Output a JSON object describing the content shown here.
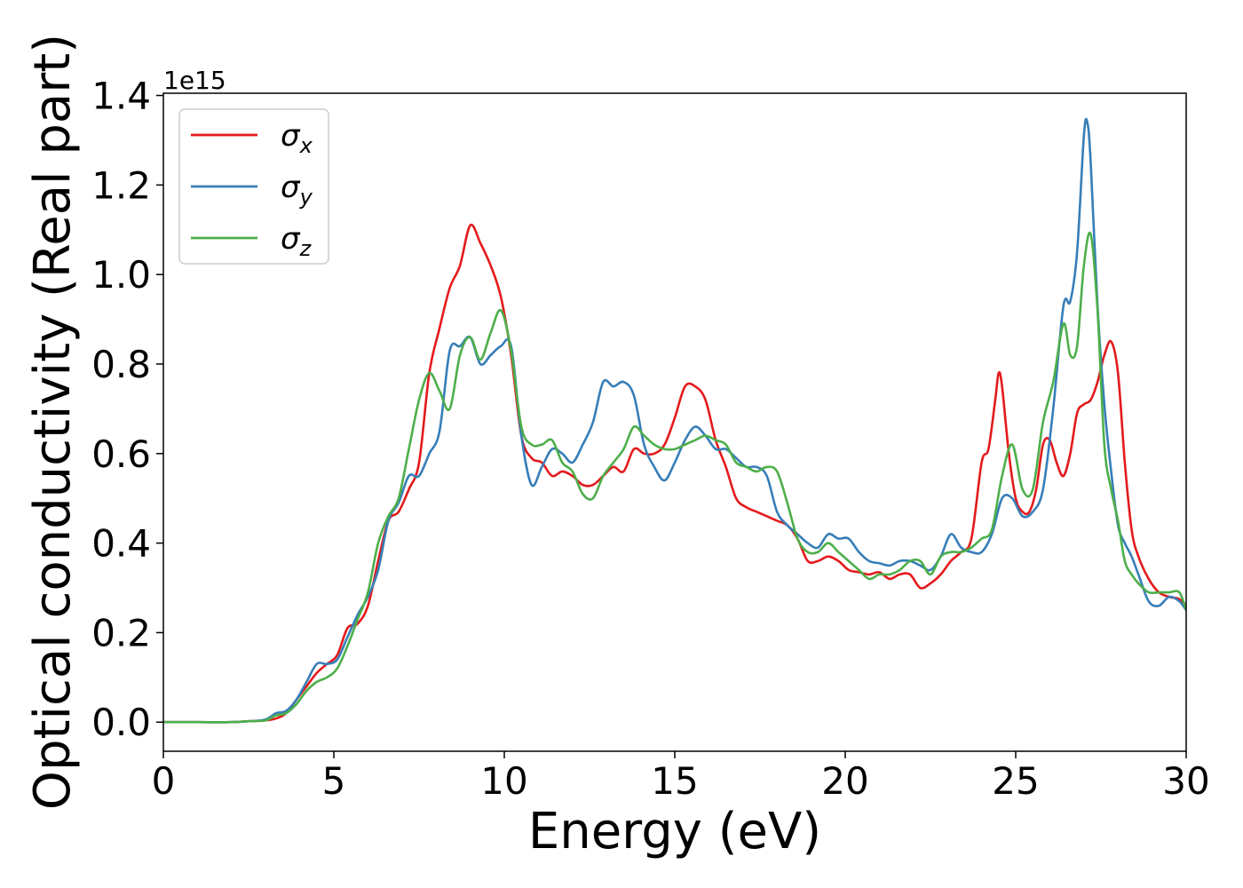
{
  "chart_data": {
    "type": "line",
    "xlabel": "Energy (eV)",
    "ylabel": "Optical conductivity (Real part)",
    "y_offset_text": "1e15",
    "xlim": [
      0,
      30
    ],
    "ylim": [
      -0.065,
      1.405
    ],
    "y_scale_factor": 1000000000000000.0,
    "xticks": [
      0,
      5,
      10,
      15,
      20,
      25,
      30
    ],
    "xtick_labels": [
      "0",
      "5",
      "10",
      "15",
      "20",
      "25",
      "30"
    ],
    "yticks": [
      0.0,
      0.2,
      0.4,
      0.6,
      0.8,
      1.0,
      1.2,
      1.4
    ],
    "ytick_labels": [
      "0.0",
      "0.2",
      "0.4",
      "0.6",
      "0.8",
      "1.0",
      "1.2",
      "1.4"
    ],
    "grid": false,
    "legend_position": "top-left",
    "series": [
      {
        "name": "σx",
        "base": "σ",
        "sub": "x",
        "color": "#e41a1c",
        "x": [
          0,
          1,
          2,
          2.5,
          3,
          3.3,
          3.6,
          3.9,
          4.2,
          4.5,
          4.8,
          5.1,
          5.4,
          5.7,
          6,
          6.3,
          6.6,
          6.9,
          7.2,
          7.5,
          7.8,
          8.1,
          8.4,
          8.7,
          9,
          9.3,
          9.6,
          9.9,
          10.2,
          10.5,
          10.8,
          11.1,
          11.4,
          11.7,
          12,
          12.3,
          12.6,
          12.9,
          13.2,
          13.5,
          13.8,
          14.1,
          14.4,
          14.7,
          15,
          15.3,
          15.6,
          15.9,
          16.2,
          16.5,
          16.8,
          17.1,
          17.4,
          17.7,
          18,
          18.3,
          18.6,
          18.9,
          19.2,
          19.5,
          19.8,
          20.1,
          20.4,
          20.7,
          21,
          21.3,
          21.6,
          21.9,
          22.2,
          22.5,
          22.8,
          23.1,
          23.4,
          23.7,
          24,
          24.2,
          24.4,
          24.5,
          24.6,
          24.8,
          25,
          25.2,
          25.4,
          25.6,
          25.8,
          26,
          26.2,
          26.4,
          26.6,
          26.8,
          27,
          27.2,
          27.4,
          27.6,
          27.8,
          28,
          28.2,
          28.4,
          28.6,
          28.9,
          29.2,
          29.5,
          29.8,
          30
        ],
        "y": [
          0,
          0,
          0,
          0.002,
          0.004,
          0.008,
          0.02,
          0.05,
          0.08,
          0.11,
          0.13,
          0.15,
          0.21,
          0.22,
          0.26,
          0.36,
          0.45,
          0.47,
          0.52,
          0.58,
          0.78,
          0.88,
          0.97,
          1.02,
          1.11,
          1.07,
          1.02,
          0.95,
          0.82,
          0.64,
          0.59,
          0.58,
          0.55,
          0.56,
          0.55,
          0.53,
          0.53,
          0.55,
          0.57,
          0.56,
          0.61,
          0.6,
          0.6,
          0.62,
          0.68,
          0.75,
          0.75,
          0.72,
          0.63,
          0.57,
          0.5,
          0.48,
          0.47,
          0.46,
          0.45,
          0.44,
          0.41,
          0.36,
          0.36,
          0.37,
          0.36,
          0.34,
          0.335,
          0.33,
          0.335,
          0.32,
          0.33,
          0.33,
          0.3,
          0.31,
          0.33,
          0.36,
          0.38,
          0.41,
          0.58,
          0.61,
          0.72,
          0.78,
          0.75,
          0.6,
          0.5,
          0.47,
          0.47,
          0.52,
          0.62,
          0.63,
          0.58,
          0.55,
          0.6,
          0.69,
          0.71,
          0.72,
          0.76,
          0.82,
          0.85,
          0.78,
          0.58,
          0.43,
          0.37,
          0.32,
          0.29,
          0.28,
          0.275,
          0.26
        ]
      },
      {
        "name": "σy",
        "base": "σ",
        "sub": "y",
        "color": "#377eb8",
        "x": [
          0,
          1,
          2,
          2.5,
          3,
          3.3,
          3.6,
          3.9,
          4.2,
          4.5,
          4.8,
          5.1,
          5.4,
          5.7,
          6,
          6.3,
          6.6,
          6.9,
          7.2,
          7.5,
          7.8,
          8.1,
          8.4,
          8.7,
          9,
          9.3,
          9.6,
          9.9,
          10.2,
          10.5,
          10.8,
          11.1,
          11.4,
          11.7,
          12,
          12.3,
          12.6,
          12.9,
          13.2,
          13.5,
          13.8,
          14.1,
          14.4,
          14.7,
          15,
          15.3,
          15.6,
          15.9,
          16.2,
          16.5,
          16.8,
          17.1,
          17.4,
          17.7,
          18,
          18.3,
          18.6,
          18.9,
          19.2,
          19.5,
          19.8,
          20.1,
          20.4,
          20.7,
          21,
          21.3,
          21.6,
          21.9,
          22.2,
          22.5,
          22.8,
          23.1,
          23.4,
          23.7,
          24,
          24.3,
          24.6,
          24.9,
          25.2,
          25.5,
          25.8,
          26.1,
          26.4,
          26.6,
          26.8,
          27,
          27.1,
          27.2,
          27.4,
          27.6,
          27.8,
          28,
          28.2,
          28.4,
          28.6,
          28.9,
          29.2,
          29.5,
          29.8,
          30
        ],
        "y": [
          0,
          0,
          0,
          0.002,
          0.006,
          0.02,
          0.025,
          0.05,
          0.09,
          0.13,
          0.13,
          0.14,
          0.19,
          0.24,
          0.28,
          0.34,
          0.45,
          0.49,
          0.55,
          0.55,
          0.6,
          0.65,
          0.83,
          0.84,
          0.86,
          0.8,
          0.82,
          0.84,
          0.84,
          0.64,
          0.53,
          0.57,
          0.61,
          0.6,
          0.58,
          0.62,
          0.67,
          0.76,
          0.75,
          0.76,
          0.73,
          0.62,
          0.57,
          0.54,
          0.58,
          0.63,
          0.66,
          0.64,
          0.61,
          0.61,
          0.59,
          0.57,
          0.57,
          0.55,
          0.47,
          0.44,
          0.42,
          0.4,
          0.39,
          0.42,
          0.41,
          0.41,
          0.38,
          0.36,
          0.355,
          0.35,
          0.36,
          0.36,
          0.35,
          0.34,
          0.37,
          0.42,
          0.39,
          0.38,
          0.38,
          0.42,
          0.5,
          0.5,
          0.46,
          0.47,
          0.52,
          0.7,
          0.93,
          0.94,
          1.05,
          1.31,
          1.34,
          1.25,
          0.93,
          0.71,
          0.56,
          0.44,
          0.4,
          0.37,
          0.33,
          0.27,
          0.26,
          0.28,
          0.27,
          0.25
        ]
      },
      {
        "name": "σz",
        "base": "σ",
        "sub": "z",
        "color": "#4daf4a",
        "x": [
          0,
          1,
          2,
          2.5,
          3,
          3.3,
          3.6,
          3.9,
          4.2,
          4.5,
          4.8,
          5.1,
          5.4,
          5.7,
          6,
          6.3,
          6.6,
          6.9,
          7.2,
          7.5,
          7.8,
          8.1,
          8.4,
          8.7,
          9,
          9.3,
          9.6,
          9.9,
          10.2,
          10.5,
          10.8,
          11.1,
          11.4,
          11.7,
          12,
          12.3,
          12.6,
          12.9,
          13.2,
          13.5,
          13.8,
          14.1,
          14.4,
          14.7,
          15,
          15.3,
          15.6,
          15.9,
          16.2,
          16.5,
          16.8,
          17.1,
          17.4,
          17.7,
          18,
          18.3,
          18.6,
          18.9,
          19.2,
          19.5,
          19.8,
          20.1,
          20.4,
          20.7,
          21,
          21.3,
          21.6,
          21.9,
          22.2,
          22.5,
          22.8,
          23.1,
          23.4,
          23.7,
          24,
          24.3,
          24.6,
          24.9,
          25.2,
          25.5,
          25.8,
          26.1,
          26.4,
          26.6,
          26.8,
          27,
          27.2,
          27.4,
          27.6,
          27.8,
          28,
          28.2,
          28.4,
          28.6,
          28.9,
          29.2,
          29.5,
          29.8,
          30
        ],
        "y": [
          0,
          0,
          0,
          0.002,
          0.004,
          0.015,
          0.02,
          0.04,
          0.07,
          0.09,
          0.1,
          0.12,
          0.17,
          0.23,
          0.29,
          0.4,
          0.46,
          0.5,
          0.61,
          0.72,
          0.78,
          0.74,
          0.7,
          0.82,
          0.86,
          0.81,
          0.87,
          0.92,
          0.83,
          0.66,
          0.62,
          0.62,
          0.63,
          0.58,
          0.56,
          0.51,
          0.5,
          0.55,
          0.58,
          0.61,
          0.66,
          0.64,
          0.62,
          0.61,
          0.61,
          0.62,
          0.63,
          0.64,
          0.63,
          0.62,
          0.58,
          0.57,
          0.56,
          0.57,
          0.56,
          0.49,
          0.41,
          0.38,
          0.38,
          0.4,
          0.38,
          0.36,
          0.34,
          0.32,
          0.33,
          0.33,
          0.34,
          0.36,
          0.36,
          0.33,
          0.37,
          0.38,
          0.38,
          0.39,
          0.41,
          0.43,
          0.55,
          0.62,
          0.52,
          0.52,
          0.67,
          0.76,
          0.89,
          0.82,
          0.84,
          1.02,
          1.09,
          0.92,
          0.62,
          0.52,
          0.45,
          0.36,
          0.33,
          0.31,
          0.29,
          0.29,
          0.29,
          0.29,
          0.25
        ]
      }
    ]
  }
}
